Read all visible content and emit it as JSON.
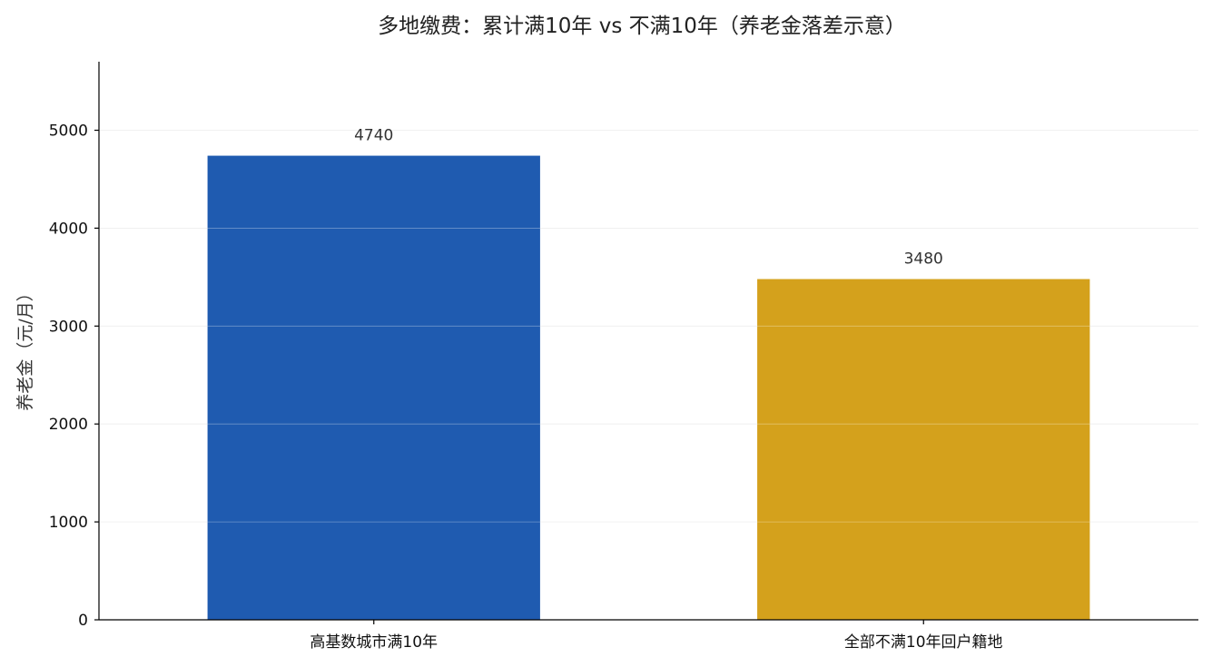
{
  "chart_data": {
    "type": "bar",
    "title": "多地缴费：累计满10年 vs 不满10年（养老金落差示意）",
    "xlabel": "",
    "ylabel": "养老金（元/月）",
    "categories": [
      "高基数城市满10年",
      "全部不满10年回户籍地"
    ],
    "values": [
      4740,
      3480
    ],
    "data_labels": [
      "4740",
      "3480"
    ],
    "colors": [
      "#1f5bb0",
      "#d4a11c"
    ],
    "ylim": [
      0,
      5700
    ],
    "yticks": [
      0,
      1000,
      2000,
      3000,
      4000,
      5000
    ],
    "ytick_labels": [
      "0",
      "1000",
      "2000",
      "3000",
      "4000",
      "5000"
    ],
    "grid": true,
    "legend": "none"
  }
}
